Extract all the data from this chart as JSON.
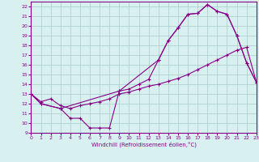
{
  "line1_x": [
    0,
    1,
    3,
    4,
    5,
    6,
    7,
    8,
    9,
    13,
    14,
    15,
    16,
    17,
    18,
    19,
    20,
    21,
    22,
    23
  ],
  "line1_y": [
    13.0,
    12.0,
    11.5,
    10.5,
    10.5,
    9.5,
    9.5,
    9.5,
    13.3,
    16.5,
    18.5,
    19.8,
    21.2,
    21.3,
    22.2,
    21.5,
    21.2,
    19.0,
    16.2,
    14.2
  ],
  "line2_x": [
    0,
    1,
    2,
    3,
    4,
    5,
    6,
    7,
    8,
    9,
    10,
    11,
    12,
    13,
    14,
    15,
    16,
    17,
    18,
    19,
    20,
    21,
    22,
    23
  ],
  "line2_y": [
    13.0,
    12.2,
    12.5,
    11.8,
    11.5,
    11.8,
    12.0,
    12.2,
    12.5,
    13.0,
    13.2,
    13.5,
    13.8,
    14.0,
    14.3,
    14.6,
    15.0,
    15.5,
    16.0,
    16.5,
    17.0,
    17.5,
    17.8,
    14.2
  ],
  "line3_x": [
    0,
    1,
    3,
    9,
    10,
    11,
    12,
    13,
    14,
    15,
    16,
    17,
    18,
    19,
    20,
    21,
    22,
    23
  ],
  "line3_y": [
    13.0,
    12.0,
    11.5,
    13.3,
    13.5,
    14.0,
    14.5,
    16.5,
    18.5,
    19.8,
    21.2,
    21.3,
    22.2,
    21.5,
    21.2,
    19.0,
    16.2,
    14.2
  ],
  "color": "#880088",
  "bg_color": "#d8f0f0",
  "grid_color": "#aacccc",
  "xlabel": "Windchill (Refroidissement éolien,°C)",
  "ylim": [
    9,
    22.5
  ],
  "xlim": [
    0,
    23
  ],
  "yticks": [
    9,
    10,
    11,
    12,
    13,
    14,
    15,
    16,
    17,
    18,
    19,
    20,
    21,
    22
  ],
  "xticks": [
    0,
    1,
    2,
    3,
    4,
    5,
    6,
    7,
    8,
    9,
    10,
    11,
    12,
    13,
    14,
    15,
    16,
    17,
    18,
    19,
    20,
    21,
    22,
    23
  ]
}
